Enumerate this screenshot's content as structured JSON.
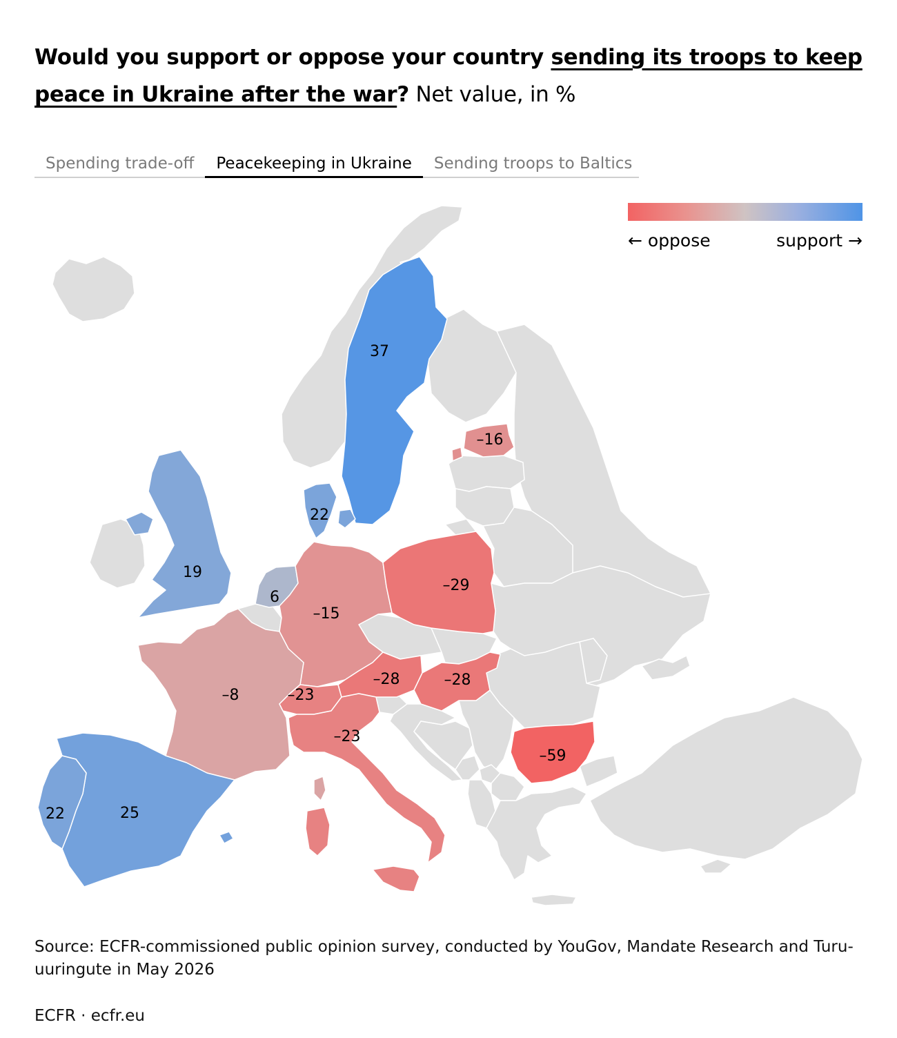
{
  "title": {
    "part1": "Would you support or oppose your country ",
    "underlined": "sending its troops to keep peace in Ukraine after the war",
    "part2": "?",
    "suffix": " Net value, in %"
  },
  "tabs": [
    {
      "label": "Spending trade-off",
      "active": false
    },
    {
      "label": "Peacekeeping in Ukraine",
      "active": true
    },
    {
      "label": "Sending troops to Baltics",
      "active": false
    }
  ],
  "legend": {
    "left_label": "← oppose",
    "right_label": "support →",
    "colors": [
      "#f26363",
      "#cfc3c3",
      "#4f94e6"
    ]
  },
  "map": {
    "no_data_color": "#dedede",
    "border_color": "#ffffff"
  },
  "countries": [
    {
      "name": "Sweden",
      "value": 37,
      "label": "37"
    },
    {
      "name": "Spain",
      "value": 25,
      "label": "25"
    },
    {
      "name": "Portugal",
      "value": 22,
      "label": "22"
    },
    {
      "name": "Denmark",
      "value": 22,
      "label": "22"
    },
    {
      "name": "United Kingdom",
      "value": 19,
      "label": "19"
    },
    {
      "name": "Netherlands",
      "value": 6,
      "label": "6"
    },
    {
      "name": "France",
      "value": -8,
      "label": "–8"
    },
    {
      "name": "Germany",
      "value": -15,
      "label": "–15"
    },
    {
      "name": "Estonia",
      "value": -16,
      "label": "–16"
    },
    {
      "name": "Switzerland",
      "value": -23,
      "label": "–23"
    },
    {
      "name": "Italy",
      "value": -23,
      "label": "–23"
    },
    {
      "name": "Austria",
      "value": -28,
      "label": "–28"
    },
    {
      "name": "Hungary",
      "value": -28,
      "label": "–28"
    },
    {
      "name": "Poland",
      "value": -29,
      "label": "–29"
    },
    {
      "name": "Bulgaria",
      "value": -59,
      "label": "–59"
    }
  ],
  "source": "Source: ECFR-commissioned public opinion survey, conducted by YouGov, Mandate Research and Turu-uuringute in May 2026",
  "credit": "ECFR · ecfr.eu"
}
